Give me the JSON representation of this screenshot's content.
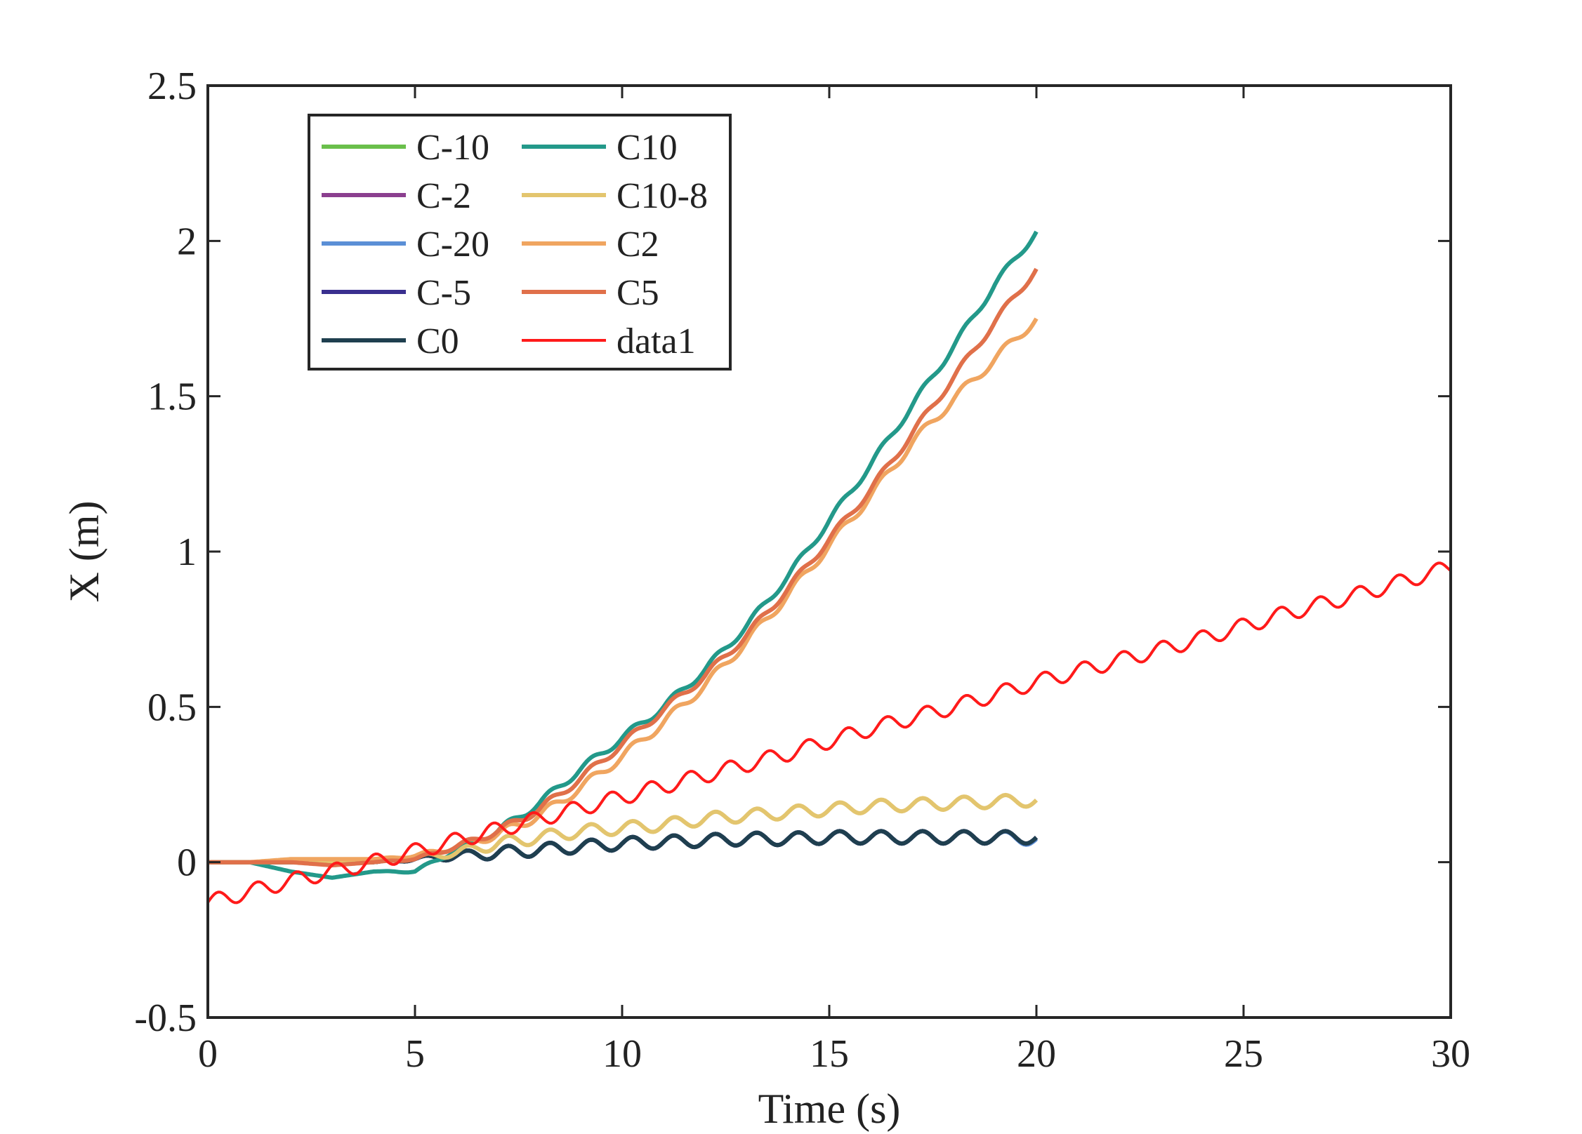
{
  "chart_data": {
    "type": "line",
    "title": "",
    "xlabel": "Time (s)",
    "ylabel": "X (m)",
    "xlim": [
      0,
      30
    ],
    "ylim": [
      -0.5,
      2.5
    ],
    "xticks": [
      0,
      5,
      10,
      15,
      20,
      25,
      30
    ],
    "xtick_labels": [
      "0",
      "5",
      "10",
      "15",
      "20",
      "25",
      "30"
    ],
    "yticks": [
      -0.5,
      0,
      0.5,
      1,
      1.5,
      2,
      2.5
    ],
    "ytick_labels": [
      "-0.5",
      "0",
      "0.5",
      "1",
      "1.5",
      "2",
      "2.5"
    ],
    "grid": false,
    "legend_position": "top-left",
    "legend_columns": 2,
    "series": [
      {
        "name": "C-10",
        "color": "#6abf4b",
        "x": [
          0,
          2,
          4,
          6,
          7,
          8,
          9,
          10,
          11,
          12,
          13,
          14,
          15,
          16,
          17,
          18,
          19,
          20
        ],
        "y": [
          0,
          0,
          0,
          0.02,
          0.03,
          0.04,
          0.05,
          0.06,
          0.065,
          0.07,
          0.075,
          0.075,
          0.08,
          0.08,
          0.08,
          0.08,
          0.08,
          0.08
        ],
        "osc_amp": 0.02,
        "osc_period": 1
      },
      {
        "name": "C-2",
        "color": "#8b3f8f",
        "x": [
          0,
          2,
          4,
          6,
          7,
          8,
          9,
          10,
          11,
          12,
          13,
          14,
          15,
          16,
          17,
          18,
          19,
          20
        ],
        "y": [
          0,
          0,
          0,
          0.02,
          0.03,
          0.04,
          0.05,
          0.06,
          0.065,
          0.07,
          0.075,
          0.075,
          0.08,
          0.08,
          0.08,
          0.08,
          0.08,
          0.08
        ],
        "osc_amp": 0.02,
        "osc_period": 1
      },
      {
        "name": "C-20",
        "color": "#5b8fd6",
        "x": [
          0,
          2,
          4,
          6,
          7,
          8,
          9,
          10,
          11,
          12,
          13,
          14,
          15,
          16,
          17,
          18,
          19,
          20
        ],
        "y": [
          0,
          0,
          0,
          0.02,
          0.03,
          0.04,
          0.05,
          0.06,
          0.065,
          0.07,
          0.075,
          0.075,
          0.08,
          0.08,
          0.08,
          0.08,
          0.08,
          0.075
        ],
        "osc_amp": 0.02,
        "osc_period": 1
      },
      {
        "name": "C-5",
        "color": "#3a2f8f",
        "x": [
          0,
          2,
          4,
          6,
          7,
          8,
          9,
          10,
          11,
          12,
          13,
          14,
          15,
          16,
          17,
          18,
          19,
          20
        ],
        "y": [
          0,
          0,
          0,
          0.02,
          0.03,
          0.04,
          0.05,
          0.06,
          0.065,
          0.07,
          0.075,
          0.075,
          0.08,
          0.08,
          0.08,
          0.08,
          0.08,
          0.08
        ],
        "osc_amp": 0.02,
        "osc_period": 1
      },
      {
        "name": "C0",
        "color": "#1f3f4f",
        "x": [
          0,
          2,
          4,
          6,
          7,
          8,
          9,
          10,
          11,
          12,
          13,
          14,
          15,
          16,
          17,
          18,
          19,
          20
        ],
        "y": [
          0,
          0,
          0,
          0.02,
          0.03,
          0.04,
          0.05,
          0.06,
          0.065,
          0.07,
          0.075,
          0.075,
          0.08,
          0.08,
          0.08,
          0.08,
          0.08,
          0.08
        ],
        "osc_amp": 0.02,
        "osc_period": 1
      },
      {
        "name": "C10",
        "color": "#23998a",
        "x": [
          0,
          1,
          2,
          3,
          4,
          5,
          6,
          7,
          8,
          9,
          10,
          11,
          12,
          13,
          14,
          15,
          16,
          17,
          18,
          19,
          20
        ],
        "y": [
          0,
          0,
          -0.03,
          -0.05,
          -0.03,
          -0.03,
          0.04,
          0.1,
          0.19,
          0.3,
          0.4,
          0.5,
          0.62,
          0.76,
          0.92,
          1.1,
          1.28,
          1.47,
          1.66,
          1.86,
          2.03
        ],
        "osc_amp": 0.012,
        "osc_period": 1
      },
      {
        "name": "C10-8",
        "color": "#e3c56e",
        "x": [
          0,
          2,
          4,
          6,
          7,
          8,
          9,
          10,
          11,
          12,
          13,
          14,
          15,
          16,
          17,
          18,
          19,
          20
        ],
        "y": [
          0,
          0,
          0,
          0.03,
          0.06,
          0.08,
          0.1,
          0.11,
          0.12,
          0.14,
          0.15,
          0.16,
          0.17,
          0.18,
          0.185,
          0.19,
          0.195,
          0.2
        ],
        "osc_amp": 0.02,
        "osc_period": 1
      },
      {
        "name": "C2",
        "color": "#f0a560",
        "x": [
          0,
          1,
          2,
          3,
          4,
          5,
          6,
          7,
          8,
          9,
          10,
          11,
          12,
          13,
          14,
          15,
          16,
          17,
          18,
          19,
          20
        ],
        "y": [
          0,
          0,
          0.01,
          0.01,
          0.01,
          0.02,
          0.05,
          0.09,
          0.15,
          0.24,
          0.34,
          0.45,
          0.57,
          0.71,
          0.86,
          1.02,
          1.18,
          1.35,
          1.49,
          1.62,
          1.75
        ],
        "osc_amp": 0.015,
        "osc_period": 1
      },
      {
        "name": "C5",
        "color": "#e0704a",
        "x": [
          0,
          1,
          2,
          3,
          4,
          5,
          6,
          7,
          8,
          9,
          10,
          11,
          12,
          13,
          14,
          15,
          16,
          17,
          18,
          19,
          20
        ],
        "y": [
          0,
          0,
          0,
          -0.01,
          0.0,
          0.01,
          0.05,
          0.1,
          0.17,
          0.27,
          0.38,
          0.49,
          0.6,
          0.73,
          0.88,
          1.04,
          1.2,
          1.38,
          1.56,
          1.74,
          1.91
        ],
        "osc_amp": 0.012,
        "osc_period": 1
      },
      {
        "name": "data1",
        "color": "#ff1a1a",
        "x": [
          0,
          2,
          4,
          6,
          8,
          10,
          12,
          14,
          16,
          18,
          20,
          22,
          24,
          26,
          28,
          30
        ],
        "y": [
          -0.13,
          -0.06,
          0.0,
          0.07,
          0.14,
          0.21,
          0.28,
          0.35,
          0.43,
          0.5,
          0.58,
          0.65,
          0.72,
          0.8,
          0.87,
          0.95
        ],
        "osc_amp": 0.025,
        "osc_period": 0.95
      }
    ]
  }
}
